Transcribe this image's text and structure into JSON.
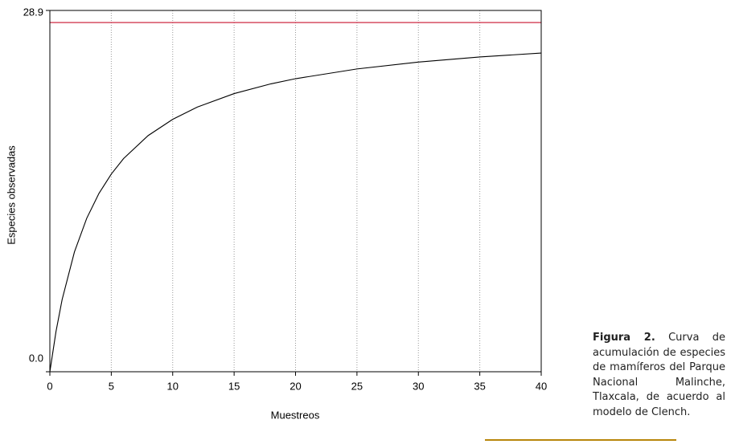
{
  "chart_data": {
    "type": "line",
    "xlabel": "Muestreos",
    "ylabel": "Especies observadas",
    "xlim": [
      0,
      40
    ],
    "xticks": [
      0,
      5,
      10,
      15,
      20,
      25,
      30,
      35,
      40
    ],
    "ylim": [
      0,
      28.9
    ],
    "yticks": [
      {
        "value": 0,
        "label": "0.0"
      },
      {
        "value": 28.9,
        "label": "28.9"
      }
    ],
    "grid": true,
    "series": [
      {
        "color": "#000000",
        "x": [
          0,
          0.5,
          1,
          2,
          3,
          4,
          5,
          6,
          8,
          10,
          12,
          15,
          18,
          20,
          25,
          30,
          35,
          40
        ],
        "values": [
          0,
          3.22,
          5.78,
          9.58,
          12.27,
          14.27,
          15.81,
          17.05,
          18.89,
          20.19,
          21.17,
          22.25,
          23.03,
          23.44,
          24.22,
          24.77,
          25.18,
          25.49
        ]
      },
      {
        "color": "#c8102e",
        "x": [
          0,
          40
        ],
        "values": [
          27.93,
          27.93
        ]
      }
    ]
  },
  "caption": {
    "label": "Figura 2.",
    "text": "Curva de acumulación de especies de mamíferos del Parque Nacional Malinche, Tlaxcala, de acuerdo al modelo de Clench."
  }
}
